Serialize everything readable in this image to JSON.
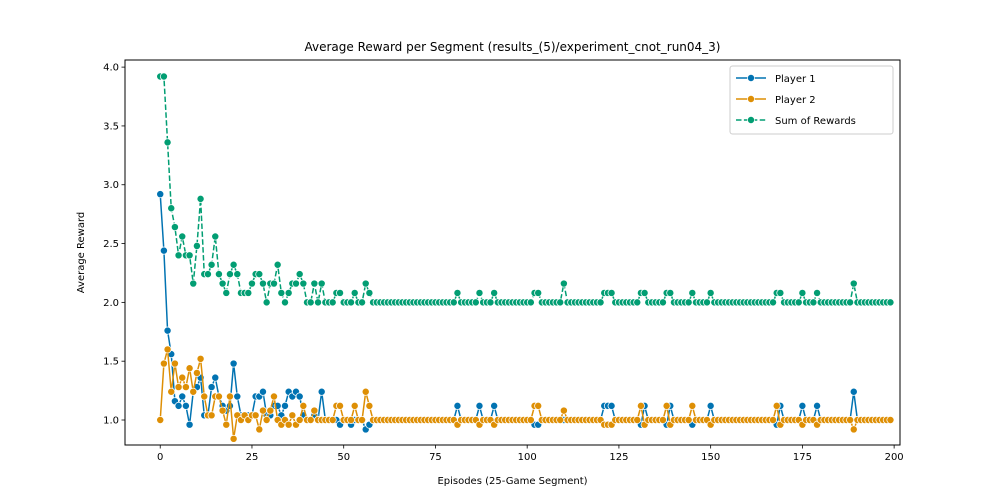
{
  "chart_data": {
    "type": "line",
    "title": "Average Reward per Segment (results_(5)/experiment_cnot_run04_3)",
    "xlabel": "Episodes (25-Game Segment)",
    "ylabel": "Average Reward",
    "xlim": [
      -9.6,
      201.6
    ],
    "ylim": [
      0.7875,
      4.0605
    ],
    "xticks": [
      0,
      25,
      50,
      75,
      100,
      125,
      150,
      175,
      200
    ],
    "yticks": [
      1.0,
      1.5,
      2.0,
      2.5,
      3.0,
      3.5,
      4.0
    ],
    "xtick_labels": [
      "0",
      "25",
      "50",
      "75",
      "100",
      "125",
      "150",
      "175",
      "200"
    ],
    "ytick_labels": [
      "1.0",
      "1.5",
      "2.0",
      "2.5",
      "3.0",
      "3.5",
      "4.0"
    ],
    "grid": false,
    "legend_position": "top-right",
    "series": [
      {
        "name": "Player 1",
        "color": "#0173b2",
        "dash": "solid",
        "values": [
          2.92,
          2.44,
          1.76,
          1.56,
          1.16,
          1.12,
          1.2,
          1.12,
          0.96,
          1.24,
          1.28,
          1.36,
          1.04,
          1.04,
          1.28,
          1.36,
          1.2,
          1.12,
          1.08,
          1.12,
          1.48,
          1.2,
          1.04,
          1.04,
          1.04,
          1.04,
          1.2,
          1.2,
          1.24,
          1.04,
          1.04,
          1.12,
          1.12,
          1.04,
          1.12,
          1.24,
          1.2,
          1.24,
          1.2,
          1.04,
          1.0,
          1.0,
          1.04,
          1.0,
          1.24,
          1.0,
          1.0,
          1.0,
          1.0,
          0.96,
          1.0,
          1.0,
          0.96,
          1.0,
          1.0,
          1.0,
          0.92,
          0.96,
          1.0,
          1.0,
          1.0,
          1.0,
          1.0,
          1.0,
          1.0,
          1.0,
          1.0,
          1.0,
          1.0,
          1.0,
          1.0,
          1.0,
          1.0,
          1.0,
          1.0,
          1.0,
          1.0,
          1.0,
          1.0,
          1.0,
          1.0,
          1.12,
          1.0,
          1.0,
          1.0,
          1.0,
          1.0,
          1.12,
          1.0,
          1.0,
          1.0,
          1.12,
          1.0,
          1.0,
          1.0,
          1.0,
          1.0,
          1.0,
          1.0,
          1.0,
          1.0,
          1.0,
          0.96,
          0.96,
          1.0,
          1.0,
          1.0,
          1.0,
          1.0,
          1.0,
          1.0,
          1.0,
          1.0,
          1.0,
          1.0,
          1.0,
          1.0,
          1.0,
          1.0,
          1.0,
          1.0,
          1.12,
          1.12,
          1.12,
          1.0,
          1.0,
          1.0,
          1.0,
          1.0,
          1.0,
          1.0,
          0.96,
          1.12,
          1.0,
          1.0,
          1.0,
          1.0,
          1.0,
          0.96,
          1.12,
          1.0,
          1.0,
          1.0,
          1.0,
          1.0,
          0.96,
          1.0,
          1.0,
          1.0,
          1.0,
          1.12,
          1.0,
          1.0,
          1.0,
          1.0,
          1.0,
          1.0,
          1.0,
          1.0,
          1.0,
          1.0,
          1.0,
          1.0,
          1.0,
          1.0,
          1.0,
          1.0,
          1.0,
          0.96,
          1.12,
          1.0,
          1.0,
          1.0,
          1.0,
          1.0,
          1.12,
          1.0,
          1.0,
          1.0,
          1.12,
          1.0,
          1.0,
          1.0,
          1.0,
          1.0,
          1.0,
          1.0,
          1.0,
          1.0,
          1.24,
          1.0,
          1.0,
          1.0,
          1.0,
          1.0,
          1.0,
          1.0,
          1.0,
          1.0,
          1.0
        ]
      },
      {
        "name": "Player 2",
        "color": "#de8f05",
        "dash": "solid",
        "values": [
          1.0,
          1.48,
          1.6,
          1.24,
          1.48,
          1.28,
          1.36,
          1.28,
          1.44,
          1.24,
          1.4,
          1.52,
          1.2,
          1.04,
          1.04,
          1.2,
          1.2,
          1.08,
          0.96,
          1.2,
          0.84,
          1.04,
          1.0,
          1.04,
          1.0,
          1.04,
          1.04,
          0.92,
          1.08,
          1.0,
          1.08,
          1.2,
          1.0,
          0.96,
          1.0,
          0.96,
          1.04,
          0.96,
          1.0,
          1.12,
          1.0,
          1.0,
          1.08,
          1.0,
          1.0,
          1.0,
          1.0,
          1.0,
          1.12,
          1.12,
          1.0,
          1.0,
          1.0,
          1.12,
          1.0,
          1.0,
          1.24,
          1.12,
          1.0,
          1.0,
          1.0,
          1.0,
          1.0,
          1.0,
          1.0,
          1.0,
          1.0,
          1.0,
          1.0,
          1.0,
          1.0,
          1.0,
          1.0,
          1.0,
          1.0,
          1.0,
          1.0,
          1.0,
          1.0,
          1.0,
          1.0,
          0.96,
          1.0,
          1.0,
          1.0,
          1.0,
          1.0,
          0.96,
          1.0,
          1.0,
          1.0,
          0.96,
          1.0,
          1.0,
          1.0,
          1.0,
          1.0,
          1.0,
          1.0,
          1.0,
          1.0,
          1.0,
          1.12,
          1.12,
          1.0,
          1.0,
          1.0,
          1.0,
          1.0,
          1.0,
          1.08,
          1.0,
          1.0,
          1.0,
          1.0,
          1.0,
          1.0,
          1.0,
          1.0,
          1.0,
          1.0,
          0.96,
          0.96,
          0.96,
          1.0,
          1.0,
          1.0,
          1.0,
          1.0,
          1.0,
          1.0,
          1.12,
          0.96,
          1.0,
          1.0,
          1.0,
          1.0,
          1.0,
          1.12,
          0.96,
          1.0,
          1.0,
          1.0,
          1.0,
          1.0,
          1.12,
          1.0,
          1.0,
          1.0,
          1.0,
          0.96,
          1.0,
          1.0,
          1.0,
          1.0,
          1.0,
          1.0,
          1.0,
          1.0,
          1.0,
          1.0,
          1.0,
          1.0,
          1.0,
          1.0,
          1.0,
          1.0,
          1.0,
          1.12,
          0.96,
          1.0,
          1.0,
          1.0,
          1.0,
          1.0,
          0.96,
          1.0,
          1.0,
          1.0,
          0.96,
          1.0,
          1.0,
          1.0,
          1.0,
          1.0,
          1.0,
          1.0,
          1.0,
          1.0,
          0.92,
          1.0,
          1.0,
          1.0,
          1.0,
          1.0,
          1.0,
          1.0,
          1.0,
          1.0,
          1.0
        ]
      },
      {
        "name": "Sum of Rewards",
        "color": "#029e73",
        "dash": "dashed",
        "values": [
          3.92,
          3.92,
          3.36,
          2.8,
          2.64,
          2.4,
          2.56,
          2.4,
          2.4,
          2.16,
          2.48,
          2.88,
          2.24,
          2.24,
          2.32,
          2.56,
          2.24,
          2.16,
          2.08,
          2.24,
          2.32,
          2.24,
          2.08,
          2.08,
          2.08,
          2.16,
          2.24,
          2.24,
          2.16,
          2.0,
          2.16,
          2.16,
          2.32,
          2.08,
          2.0,
          2.08,
          2.16,
          2.16,
          2.24,
          2.16,
          2.0,
          2.0,
          2.16,
          2.0,
          2.16,
          2.0,
          2.0,
          2.0,
          2.08,
          2.08,
          2.0,
          2.0,
          2.0,
          2.08,
          2.0,
          2.0,
          2.16,
          2.08,
          2.0,
          2.0,
          2.0,
          2.0,
          2.0,
          2.0,
          2.0,
          2.0,
          2.0,
          2.0,
          2.0,
          2.0,
          2.0,
          2.0,
          2.0,
          2.0,
          2.0,
          2.0,
          2.0,
          2.0,
          2.0,
          2.0,
          2.0,
          2.08,
          2.0,
          2.0,
          2.0,
          2.0,
          2.0,
          2.08,
          2.0,
          2.0,
          2.0,
          2.08,
          2.0,
          2.0,
          2.0,
          2.0,
          2.0,
          2.0,
          2.0,
          2.0,
          2.0,
          2.0,
          2.08,
          2.08,
          2.0,
          2.0,
          2.0,
          2.0,
          2.0,
          2.0,
          2.16,
          2.0,
          2.0,
          2.0,
          2.0,
          2.0,
          2.0,
          2.0,
          2.0,
          2.0,
          2.0,
          2.08,
          2.08,
          2.08,
          2.0,
          2.0,
          2.0,
          2.0,
          2.0,
          2.0,
          2.0,
          2.08,
          2.08,
          2.0,
          2.0,
          2.0,
          2.0,
          2.0,
          2.08,
          2.08,
          2.0,
          2.0,
          2.0,
          2.0,
          2.0,
          2.08,
          2.0,
          2.0,
          2.0,
          2.0,
          2.08,
          2.0,
          2.0,
          2.0,
          2.0,
          2.0,
          2.0,
          2.0,
          2.0,
          2.0,
          2.0,
          2.0,
          2.0,
          2.0,
          2.0,
          2.0,
          2.0,
          2.0,
          2.08,
          2.08,
          2.0,
          2.0,
          2.0,
          2.0,
          2.0,
          2.08,
          2.0,
          2.0,
          2.0,
          2.08,
          2.0,
          2.0,
          2.0,
          2.0,
          2.0,
          2.0,
          2.0,
          2.0,
          2.0,
          2.16,
          2.0,
          2.0,
          2.0,
          2.0,
          2.0,
          2.0,
          2.0,
          2.0,
          2.0,
          2.0
        ]
      }
    ]
  }
}
